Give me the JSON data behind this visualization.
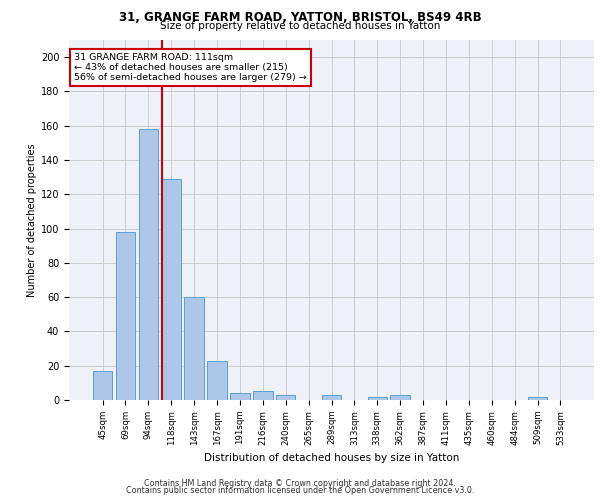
{
  "title1": "31, GRANGE FARM ROAD, YATTON, BRISTOL, BS49 4RB",
  "title2": "Size of property relative to detached houses in Yatton",
  "xlabel": "Distribution of detached houses by size in Yatton",
  "ylabel": "Number of detached properties",
  "categories": [
    "45sqm",
    "69sqm",
    "94sqm",
    "118sqm",
    "143sqm",
    "167sqm",
    "191sqm",
    "216sqm",
    "240sqm",
    "265sqm",
    "289sqm",
    "313sqm",
    "338sqm",
    "362sqm",
    "387sqm",
    "411sqm",
    "435sqm",
    "460sqm",
    "484sqm",
    "509sqm",
    "533sqm"
  ],
  "values": [
    17,
    98,
    158,
    129,
    60,
    23,
    4,
    5,
    3,
    0,
    3,
    0,
    2,
    3,
    0,
    0,
    0,
    0,
    0,
    2,
    0
  ],
  "bar_color": "#aec6e8",
  "bar_edgecolor": "#5a9fd4",
  "vline_position": 2.575,
  "vline_color": "#cc0000",
  "annotation_line1": "31 GRANGE FARM ROAD: 111sqm",
  "annotation_line2": "← 43% of detached houses are smaller (215)",
  "annotation_line3": "56% of semi-detached houses are larger (279) →",
  "annotation_box_color": "#ffffff",
  "annotation_box_edgecolor": "#cc0000",
  "ylim": [
    0,
    210
  ],
  "yticks": [
    0,
    20,
    40,
    60,
    80,
    100,
    120,
    140,
    160,
    180,
    200
  ],
  "grid_color": "#cccccc",
  "background_color": "#eef2f8",
  "footer1": "Contains HM Land Registry data © Crown copyright and database right 2024.",
  "footer2": "Contains public sector information licensed under the Open Government Licence v3.0."
}
